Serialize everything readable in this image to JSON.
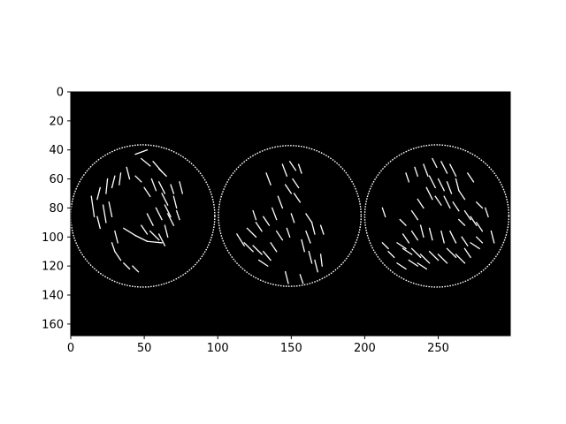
{
  "chart_data": {
    "type": "heatmap",
    "title": "",
    "xlabel": "",
    "ylabel": "",
    "xlim": [
      0,
      299
    ],
    "ylim": [
      168,
      0
    ],
    "x_ticks": [
      0,
      50,
      100,
      150,
      200,
      250
    ],
    "y_ticks": [
      0,
      20,
      40,
      60,
      80,
      100,
      120,
      140,
      160
    ],
    "grid": false,
    "colormap": "gray",
    "background_color": "#000000",
    "edge_color": "#ffffff",
    "image_description": "binary edge-detection image of three coins",
    "coins": [
      {
        "cx": 49,
        "cy": 85.5,
        "r": 49
      },
      {
        "cx": 149,
        "cy": 85.5,
        "r": 48.5
      },
      {
        "cx": 249,
        "cy": 85.5,
        "r": 49
      }
    ],
    "interior_edges": [
      [
        [
          44,
          43
        ],
        [
          52,
          40
        ]
      ],
      [
        [
          48,
          46
        ],
        [
          54,
          51
        ]
      ],
      [
        [
          56,
          48
        ],
        [
          62,
          55
        ]
      ],
      [
        [
          60,
          53
        ],
        [
          65,
          58
        ]
      ],
      [
        [
          38,
          52
        ],
        [
          40,
          60
        ]
      ],
      [
        [
          34,
          56
        ],
        [
          33,
          64
        ]
      ],
      [
        [
          30,
          58
        ],
        [
          28,
          66
        ]
      ],
      [
        [
          25,
          60
        ],
        [
          24,
          70
        ]
      ],
      [
        [
          20,
          66
        ],
        [
          18,
          74
        ]
      ],
      [
        [
          14,
          72
        ],
        [
          16,
          86
        ]
      ],
      [
        [
          22,
          78
        ],
        [
          24,
          90
        ]
      ],
      [
        [
          18,
          86
        ],
        [
          20,
          94
        ]
      ],
      [
        [
          26,
          76
        ],
        [
          28,
          86
        ]
      ],
      [
        [
          55,
          60
        ],
        [
          58,
          68
        ]
      ],
      [
        [
          60,
          62
        ],
        [
          64,
          70
        ]
      ],
      [
        [
          62,
          70
        ],
        [
          66,
          78
        ]
      ],
      [
        [
          64,
          78
        ],
        [
          68,
          86
        ]
      ],
      [
        [
          58,
          80
        ],
        [
          62,
          88
        ]
      ],
      [
        [
          52,
          84
        ],
        [
          56,
          92
        ]
      ],
      [
        [
          48,
          92
        ],
        [
          52,
          98
        ]
      ],
      [
        [
          54,
          96
        ],
        [
          60,
          102
        ]
      ],
      [
        [
          60,
          98
        ],
        [
          64,
          106
        ]
      ],
      [
        [
          64,
          92
        ],
        [
          66,
          100
        ]
      ],
      [
        [
          66,
          84
        ],
        [
          70,
          92
        ]
      ],
      [
        [
          70,
          72
        ],
        [
          72,
          80
        ]
      ],
      [
        [
          68,
          64
        ],
        [
          70,
          70
        ]
      ],
      [
        [
          36,
          94
        ],
        [
          44,
          99
        ]
      ],
      [
        [
          44,
          99
        ],
        [
          52,
          103
        ]
      ],
      [
        [
          52,
          103
        ],
        [
          62,
          104
        ]
      ],
      [
        [
          30,
          96
        ],
        [
          32,
          104
        ]
      ],
      [
        [
          28,
          104
        ],
        [
          30,
          110
        ]
      ],
      [
        [
          30,
          110
        ],
        [
          34,
          116
        ]
      ],
      [
        [
          36,
          118
        ],
        [
          40,
          122
        ]
      ],
      [
        [
          42,
          120
        ],
        [
          46,
          124
        ]
      ],
      [
        [
          74,
          62
        ],
        [
          76,
          70
        ]
      ],
      [
        [
          72,
          82
        ],
        [
          74,
          88
        ]
      ],
      [
        [
          44,
          58
        ],
        [
          48,
          62
        ]
      ],
      [
        [
          50,
          66
        ],
        [
          54,
          72
        ]
      ],
      [
        [
          133,
          56
        ],
        [
          136,
          64
        ]
      ],
      [
        [
          144,
          50
        ],
        [
          147,
          58
        ]
      ],
      [
        [
          149,
          48
        ],
        [
          153,
          54
        ]
      ],
      [
        [
          155,
          50
        ],
        [
          157,
          56
        ]
      ],
      [
        [
          151,
          60
        ],
        [
          155,
          66
        ]
      ],
      [
        [
          146,
          64
        ],
        [
          150,
          70
        ]
      ],
      [
        [
          152,
          70
        ],
        [
          156,
          76
        ]
      ],
      [
        [
          141,
          72
        ],
        [
          144,
          80
        ]
      ],
      [
        [
          137,
          80
        ],
        [
          140,
          88
        ]
      ],
      [
        [
          131,
          86
        ],
        [
          135,
          92
        ]
      ],
      [
        [
          126,
          90
        ],
        [
          130,
          96
        ]
      ],
      [
        [
          120,
          94
        ],
        [
          126,
          100
        ]
      ],
      [
        [
          113,
          98
        ],
        [
          118,
          106
        ]
      ],
      [
        [
          118,
          104
        ],
        [
          124,
          110
        ]
      ],
      [
        [
          124,
          106
        ],
        [
          130,
          112
        ]
      ],
      [
        [
          131,
          110
        ],
        [
          136,
          116
        ]
      ],
      [
        [
          128,
          116
        ],
        [
          134,
          120
        ]
      ],
      [
        [
          136,
          104
        ],
        [
          140,
          110
        ]
      ],
      [
        [
          140,
          96
        ],
        [
          144,
          102
        ]
      ],
      [
        [
          147,
          94
        ],
        [
          149,
          100
        ]
      ],
      [
        [
          160,
          84
        ],
        [
          164,
          90
        ]
      ],
      [
        [
          164,
          90
        ],
        [
          166,
          98
        ]
      ],
      [
        [
          160,
          96
        ],
        [
          163,
          104
        ]
      ],
      [
        [
          157,
          102
        ],
        [
          159,
          110
        ]
      ],
      [
        [
          162,
          110
        ],
        [
          164,
          118
        ]
      ],
      [
        [
          166,
          116
        ],
        [
          168,
          124
        ]
      ],
      [
        [
          170,
          92
        ],
        [
          172,
          98
        ]
      ],
      [
        [
          170,
          112
        ],
        [
          171,
          120
        ]
      ],
      [
        [
          124,
          82
        ],
        [
          126,
          88
        ]
      ],
      [
        [
          150,
          84
        ],
        [
          152,
          90
        ]
      ],
      [
        [
          146,
          124
        ],
        [
          148,
          132
        ]
      ],
      [
        [
          156,
          126
        ],
        [
          158,
          132
        ]
      ],
      [
        [
          240,
          50
        ],
        [
          243,
          58
        ]
      ],
      [
        [
          246,
          46
        ],
        [
          249,
          52
        ]
      ],
      [
        [
          252,
          48
        ],
        [
          256,
          56
        ]
      ],
      [
        [
          258,
          50
        ],
        [
          262,
          58
        ]
      ],
      [
        [
          244,
          58
        ],
        [
          248,
          66
        ]
      ],
      [
        [
          250,
          60
        ],
        [
          254,
          68
        ]
      ],
      [
        [
          256,
          62
        ],
        [
          259,
          70
        ]
      ],
      [
        [
          262,
          60
        ],
        [
          264,
          68
        ]
      ],
      [
        [
          264,
          68
        ],
        [
          268,
          74
        ]
      ],
      [
        [
          242,
          66
        ],
        [
          246,
          74
        ]
      ],
      [
        [
          248,
          72
        ],
        [
          252,
          78
        ]
      ],
      [
        [
          254,
          72
        ],
        [
          258,
          80
        ]
      ],
      [
        [
          260,
          76
        ],
        [
          264,
          82
        ]
      ],
      [
        [
          236,
          74
        ],
        [
          240,
          80
        ]
      ],
      [
        [
          232,
          82
        ],
        [
          236,
          88
        ]
      ],
      [
        [
          268,
          82
        ],
        [
          272,
          88
        ]
      ],
      [
        [
          272,
          86
        ],
        [
          276,
          92
        ]
      ],
      [
        [
          276,
          90
        ],
        [
          280,
          96
        ]
      ],
      [
        [
          276,
          100
        ],
        [
          280,
          104
        ]
      ],
      [
        [
          272,
          104
        ],
        [
          278,
          108
        ]
      ],
      [
        [
          266,
          100
        ],
        [
          270,
          106
        ]
      ],
      [
        [
          258,
          96
        ],
        [
          262,
          104
        ]
      ],
      [
        [
          252,
          96
        ],
        [
          254,
          104
        ]
      ],
      [
        [
          244,
          94
        ],
        [
          246,
          102
        ]
      ],
      [
        [
          238,
          92
        ],
        [
          240,
          100
        ]
      ],
      [
        [
          232,
          96
        ],
        [
          236,
          102
        ]
      ],
      [
        [
          226,
          98
        ],
        [
          230,
          104
        ]
      ],
      [
        [
          222,
          104
        ],
        [
          228,
          108
        ]
      ],
      [
        [
          226,
          108
        ],
        [
          232,
          112
        ]
      ],
      [
        [
          232,
          108
        ],
        [
          238,
          114
        ]
      ],
      [
        [
          238,
          112
        ],
        [
          244,
          118
        ]
      ],
      [
        [
          244,
          110
        ],
        [
          250,
          116
        ]
      ],
      [
        [
          250,
          112
        ],
        [
          256,
          118
        ]
      ],
      [
        [
          256,
          108
        ],
        [
          262,
          114
        ]
      ],
      [
        [
          262,
          112
        ],
        [
          268,
          118
        ]
      ],
      [
        [
          268,
          108
        ],
        [
          272,
          114
        ]
      ],
      [
        [
          230,
          116
        ],
        [
          236,
          120
        ]
      ],
      [
        [
          236,
          118
        ],
        [
          242,
          122
        ]
      ],
      [
        [
          222,
          118
        ],
        [
          228,
          122
        ]
      ],
      [
        [
          216,
          110
        ],
        [
          220,
          114
        ]
      ],
      [
        [
          212,
          104
        ],
        [
          216,
          108
        ]
      ],
      [
        [
          286,
          96
        ],
        [
          288,
          104
        ]
      ],
      [
        [
          282,
          80
        ],
        [
          284,
          86
        ]
      ],
      [
        [
          212,
          80
        ],
        [
          214,
          86
        ]
      ],
      [
        [
          224,
          88
        ],
        [
          228,
          92
        ]
      ],
      [
        [
          264,
          88
        ],
        [
          268,
          92
        ]
      ],
      [
        [
          276,
          76
        ],
        [
          280,
          80
        ]
      ],
      [
        [
          234,
          52
        ],
        [
          236,
          58
        ]
      ],
      [
        [
          228,
          56
        ],
        [
          230,
          62
        ]
      ],
      [
        [
          270,
          56
        ],
        [
          274,
          62
        ]
      ]
    ]
  }
}
